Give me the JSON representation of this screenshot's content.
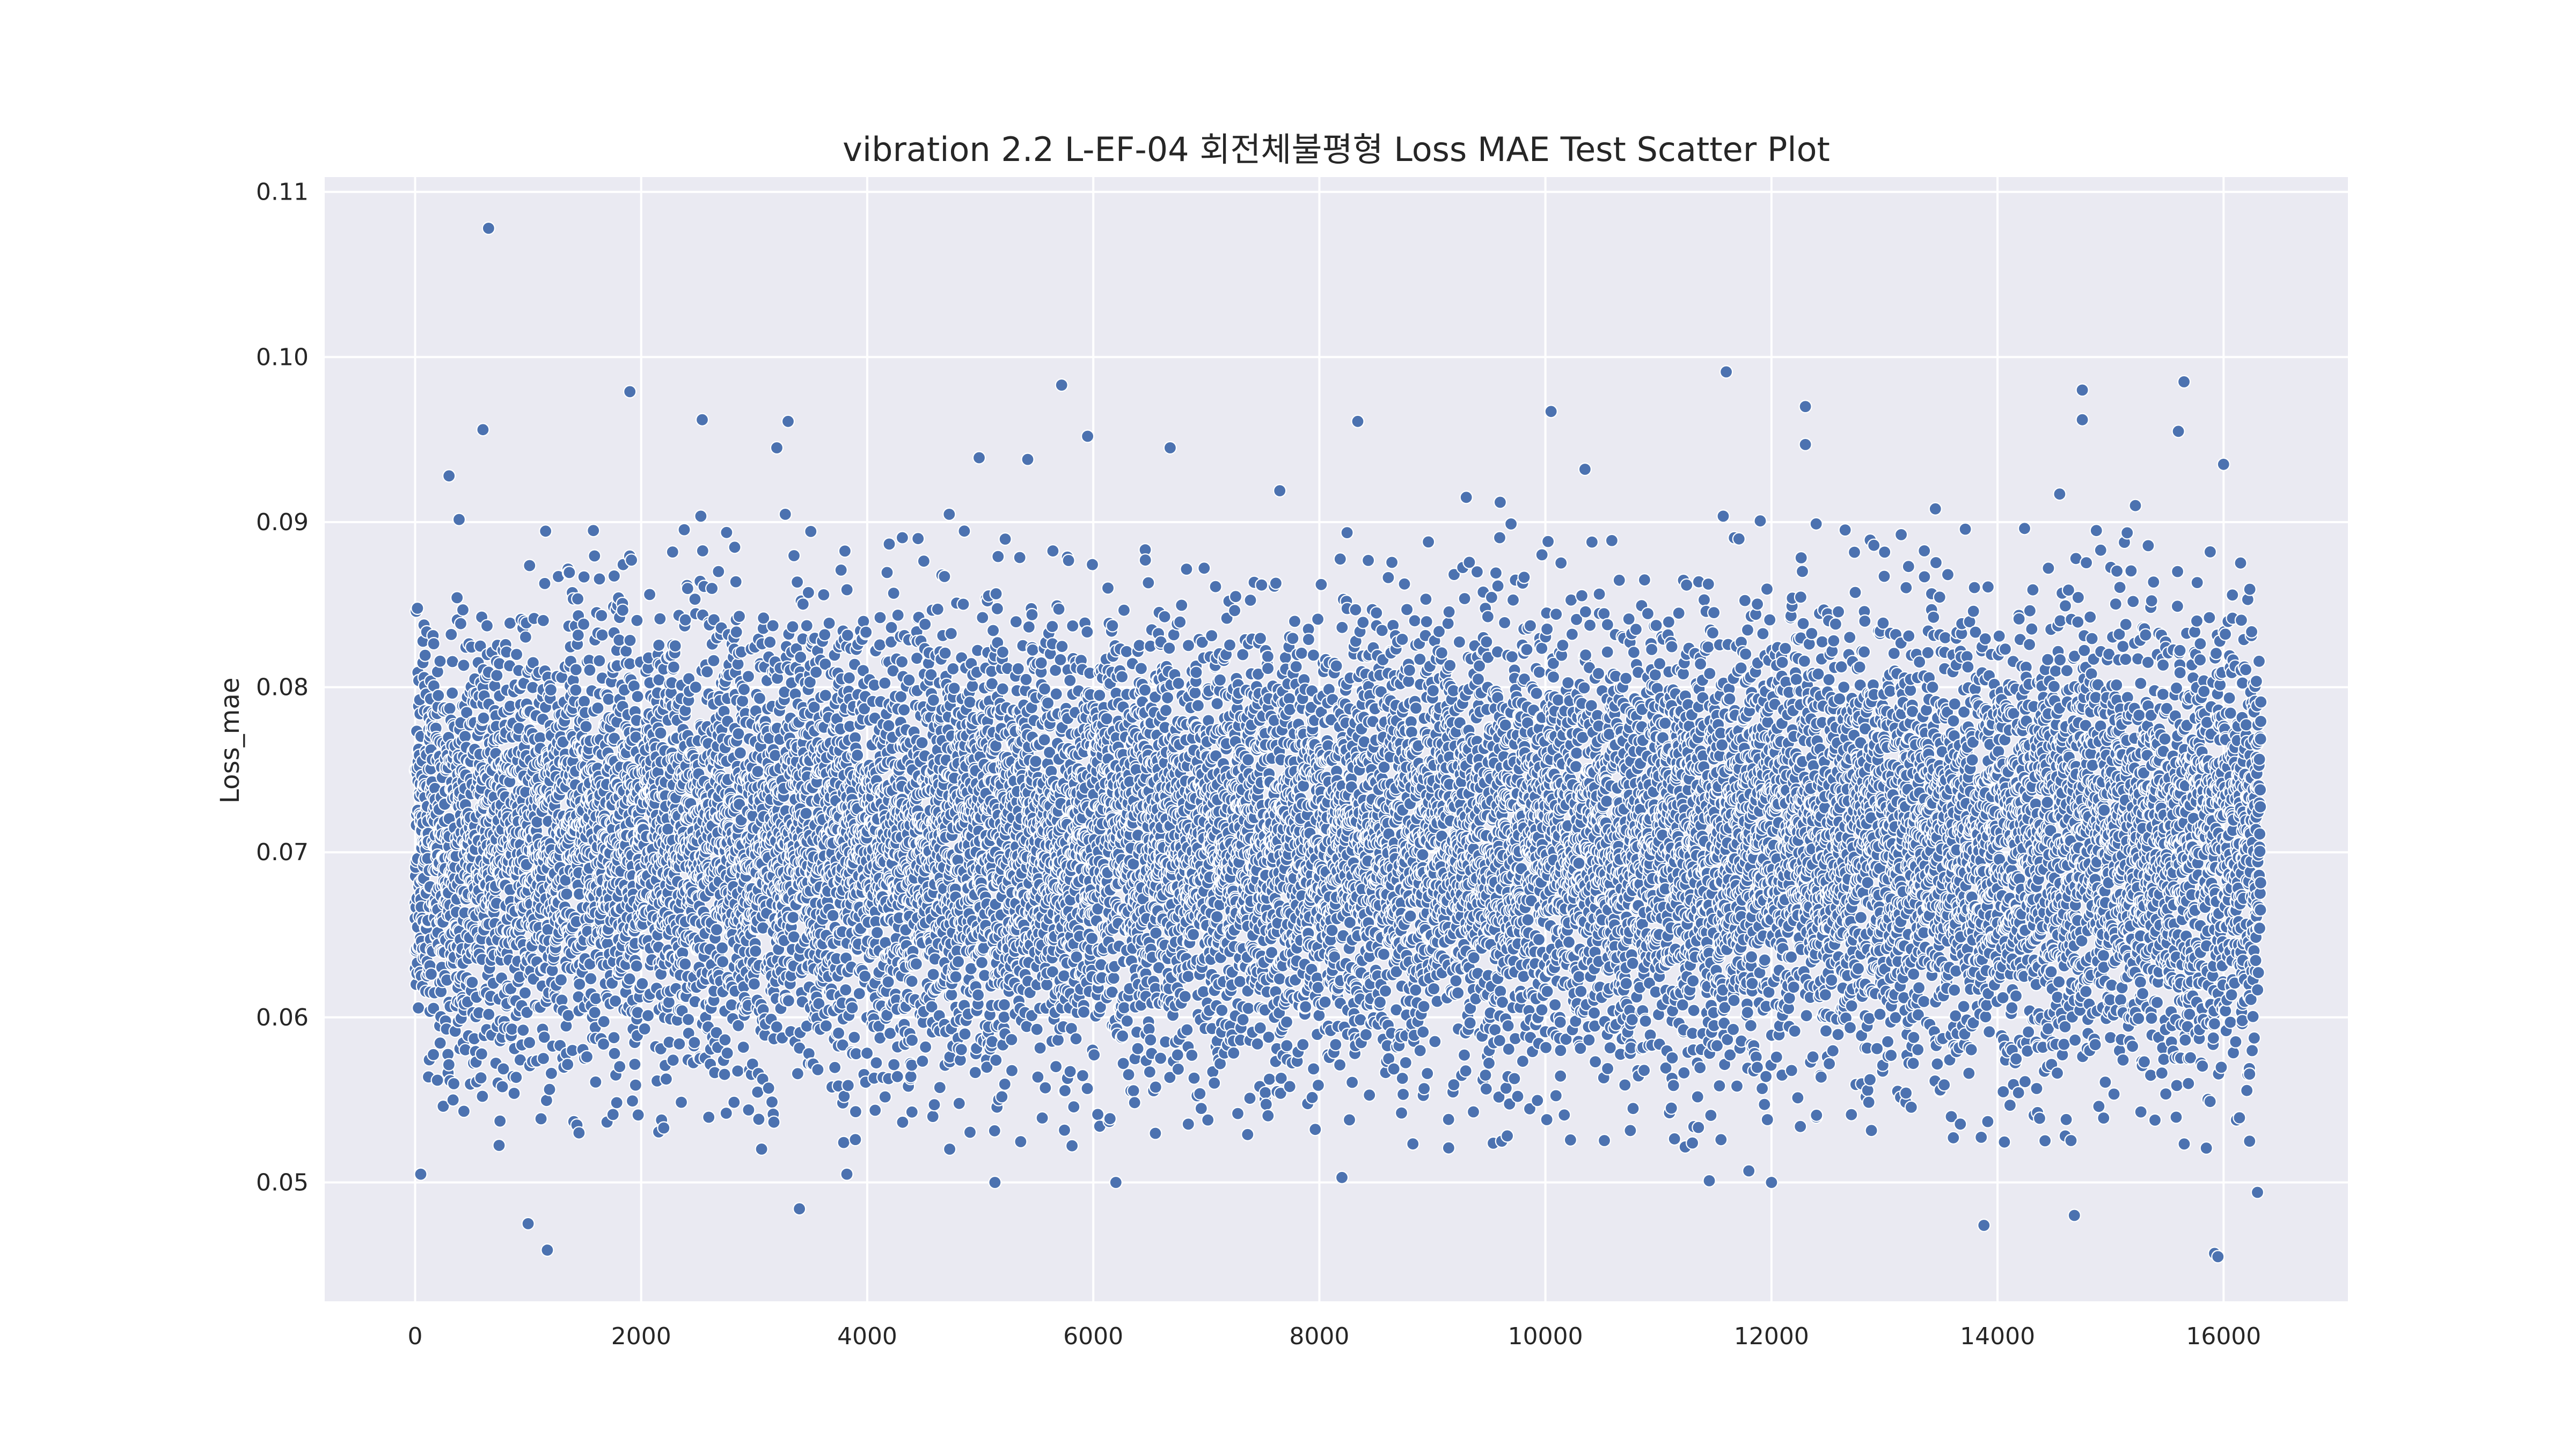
{
  "chart_data": {
    "type": "scatter",
    "title": "vibration 2.2 L-EF-04 회전체불평형 Loss MAE Test Scatter Plot",
    "xlabel": "",
    "ylabel": "Loss_mae",
    "xlim": [
      -800,
      17100
    ],
    "ylim": [
      0.0428,
      0.1109
    ],
    "xticks": [
      0,
      2000,
      4000,
      6000,
      8000,
      10000,
      12000,
      14000,
      16000
    ],
    "xtick_labels": [
      "0",
      "2000",
      "4000",
      "6000",
      "8000",
      "10000",
      "12000",
      "14000",
      "16000"
    ],
    "yticks": [
      0.05,
      0.06,
      0.07,
      0.08,
      0.09,
      0.1,
      0.11
    ],
    "ytick_labels": [
      "0.05",
      "0.06",
      "0.07",
      "0.08",
      "0.09",
      "0.10",
      "0.11"
    ],
    "grid": true,
    "colors": {
      "point_fill": "#4c72b0",
      "point_edge": "#ffffff",
      "plot_background": "#eaeaf2",
      "grid": "#ffffff"
    },
    "points": {
      "x": [
        650,
        50,
        1900,
        2540,
        3300,
        5720,
        5950,
        8340,
        10050,
        11600,
        12300,
        12300,
        14750,
        14750,
        15650,
        16000,
        600,
        300,
        3200,
        4990,
        5420,
        6680,
        7650,
        9600,
        1000,
        1170,
        3400,
        3820,
        5130,
        6200,
        8200,
        11800,
        12000,
        13880,
        14680,
        15920,
        15950,
        16300,
        1450,
        2200,
        4450,
        9300,
        10350,
        11450,
        13450,
        14550,
        15220,
        15600,
        16230
      ],
      "y": [
        0.1078,
        0.0505,
        0.0979,
        0.0962,
        0.0961,
        0.0983,
        0.0952,
        0.0961,
        0.0967,
        0.0991,
        0.097,
        0.0947,
        0.098,
        0.0962,
        0.0985,
        0.0935,
        0.0956,
        0.0928,
        0.0945,
        0.0939,
        0.0938,
        0.0945,
        0.0919,
        0.0912,
        0.0475,
        0.0459,
        0.0484,
        0.0505,
        0.05,
        0.05,
        0.0503,
        0.0507,
        0.05,
        0.0474,
        0.048,
        0.0457,
        0.0455,
        0.0494,
        0.053,
        0.0533,
        0.089,
        0.0915,
        0.0932,
        0.0501,
        0.0908,
        0.0917,
        0.091,
        0.0955,
        0.0525
      ]
    },
    "series_summary": {
      "count": 16350,
      "x_range": [
        0,
        16330
      ],
      "y_center": 0.0705,
      "y_spread": 0.0065
    }
  }
}
